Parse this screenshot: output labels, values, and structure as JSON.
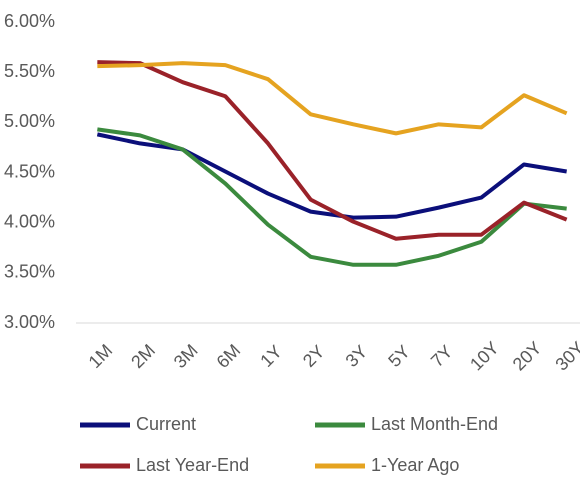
{
  "chart_data": {
    "type": "line",
    "categories": [
      "1M",
      "2M",
      "3M",
      "6M",
      "1Y",
      "2Y",
      "3Y",
      "5Y",
      "7Y",
      "10Y",
      "20Y",
      "30Y"
    ],
    "series": [
      {
        "name": "Current",
        "color": "#0b0f7a",
        "values": [
          4.88,
          4.79,
          4.73,
          4.51,
          4.29,
          4.11,
          4.05,
          4.06,
          4.15,
          4.25,
          4.58,
          4.51
        ]
      },
      {
        "name": "Last Month-End",
        "color": "#3b8a3e",
        "values": [
          4.93,
          4.87,
          4.73,
          4.39,
          3.98,
          3.66,
          3.58,
          3.58,
          3.67,
          3.81,
          4.19,
          4.14
        ]
      },
      {
        "name": "Last Year-End",
        "color": "#9a2229",
        "values": [
          5.6,
          5.59,
          5.4,
          5.26,
          4.79,
          4.23,
          4.01,
          3.84,
          3.88,
          3.88,
          4.2,
          4.03
        ]
      },
      {
        "name": "1-Year Ago",
        "color": "#e5a320",
        "values": [
          5.56,
          5.57,
          5.59,
          5.57,
          5.43,
          5.08,
          4.98,
          4.89,
          4.98,
          4.95,
          5.27,
          5.09
        ]
      }
    ],
    "ylim": [
      3,
      6
    ],
    "yticks": [
      {
        "value": 3,
        "label": "3.00%"
      },
      {
        "value": 3.5,
        "label": "3.50%"
      },
      {
        "value": 4,
        "label": "4.00%"
      },
      {
        "value": 4.5,
        "label": "4.50%"
      },
      {
        "value": 5,
        "label": "5.00%"
      },
      {
        "value": 5.5,
        "label": "5.50%"
      },
      {
        "value": 6,
        "label": "6.00%"
      }
    ],
    "grid": false,
    "legend": "bottom"
  }
}
